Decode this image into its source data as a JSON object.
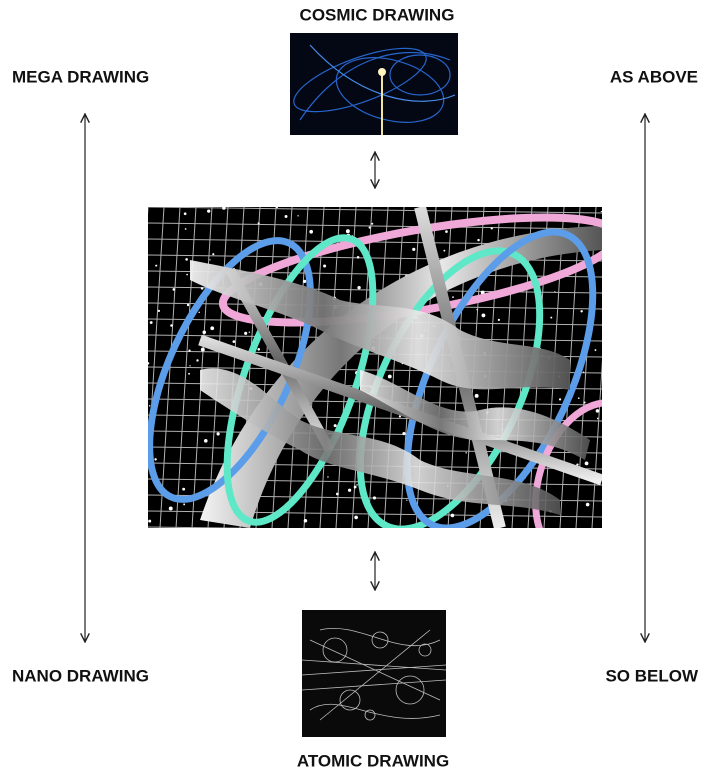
{
  "top": {
    "label": "COSMIC DRAWING"
  },
  "bottom": {
    "label": "ATOMIC DRAWING"
  },
  "left": {
    "top_label": "MEGA DRAWING",
    "bottom_label": "NANO DRAWING"
  },
  "right": {
    "top_label": "AS ABOVE",
    "bottom_label": "SO BELOW"
  }
}
